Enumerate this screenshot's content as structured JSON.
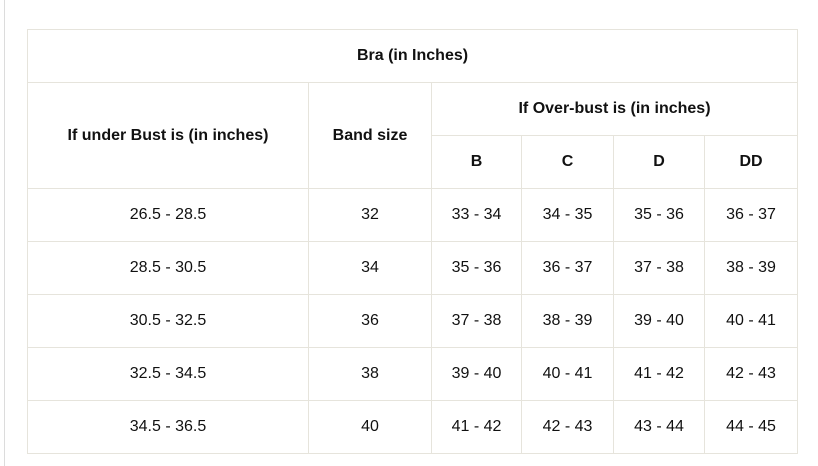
{
  "title": "Bra (in Inches)",
  "headers": {
    "under_bust": "If under Bust is (in inches)",
    "band_size": "Band size",
    "over_bust": "If Over-bust is (in inches)",
    "cups": [
      "B",
      "C",
      "D",
      "DD"
    ]
  },
  "rows": [
    {
      "under": "26.5 - 28.5",
      "band": "32",
      "cups": [
        "33 - 34",
        "34 - 35",
        "35 - 36",
        "36 - 37"
      ]
    },
    {
      "under": "28.5 - 30.5",
      "band": "34",
      "cups": [
        "35 - 36",
        "36 - 37",
        "37 - 38",
        "38 - 39"
      ]
    },
    {
      "under": "30.5 - 32.5",
      "band": "36",
      "cups": [
        "37 - 38",
        "38 - 39",
        "39 - 40",
        "40 - 41"
      ]
    },
    {
      "under": "32.5 - 34.5",
      "band": "38",
      "cups": [
        "39 - 40",
        "40 - 41",
        "41 - 42",
        "42 - 43"
      ]
    },
    {
      "under": "34.5 - 36.5",
      "band": "40",
      "cups": [
        "41 - 42",
        "42 - 43",
        "43 - 44",
        "44 - 45"
      ]
    }
  ]
}
